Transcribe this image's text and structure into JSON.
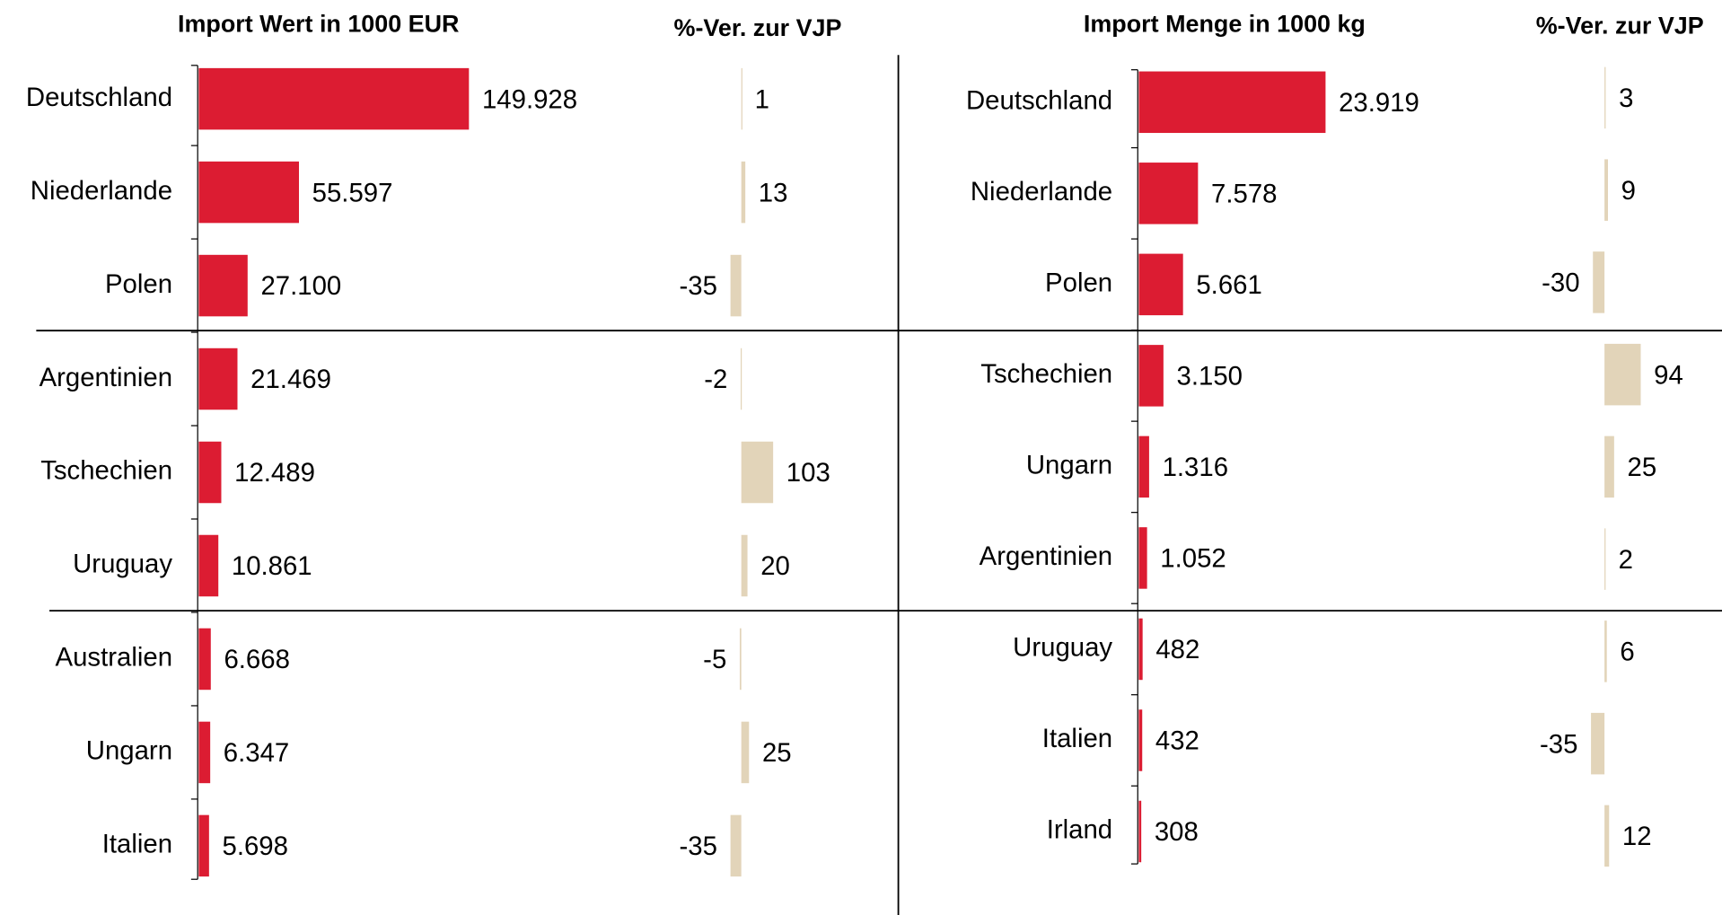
{
  "chart_data": [
    {
      "type": "bar",
      "orientation": "horizontal",
      "title": "Import Wert in 1000 EUR",
      "categories": [
        "Deutschland",
        "Niederlande",
        "Polen",
        "Argentinien",
        "Tschechien",
        "Uruguay",
        "Australien",
        "Ungarn",
        "Italien"
      ],
      "values": [
        149928,
        55597,
        27100,
        21469,
        12489,
        10861,
        6668,
        6347,
        5698
      ],
      "value_labels": [
        "149.928",
        "55.597",
        "27.100",
        "21.469",
        "12.489",
        "10.861",
        "6.668",
        "6.347",
        "5.698"
      ],
      "color": "#dc1c32"
    },
    {
      "type": "bar",
      "orientation": "horizontal",
      "title": "%-Ver. zur VJP",
      "values": [
        1,
        13,
        -35,
        -2,
        103,
        20,
        -5,
        25,
        -35
      ],
      "color": "#e2d4b9"
    },
    {
      "type": "bar",
      "orientation": "horizontal",
      "title": "Import Menge in 1000 kg",
      "categories": [
        "Deutschland",
        "Niederlande",
        "Polen",
        "Tschechien",
        "Ungarn",
        "Argentinien",
        "Uruguay",
        "Italien",
        "Irland"
      ],
      "values": [
        23919,
        7578,
        5661,
        3150,
        1316,
        1052,
        482,
        432,
        308
      ],
      "value_labels": [
        "23.919",
        "7.578",
        "5.661",
        "3.150",
        "1.316",
        "1.052",
        "482",
        "432",
        "308"
      ],
      "color": "#dc1c32"
    },
    {
      "type": "bar",
      "orientation": "horizontal",
      "title": "%-Ver. zur VJP",
      "values": [
        3,
        9,
        -30,
        94,
        25,
        2,
        6,
        -35,
        12
      ],
      "color": "#e2d4b9"
    }
  ]
}
